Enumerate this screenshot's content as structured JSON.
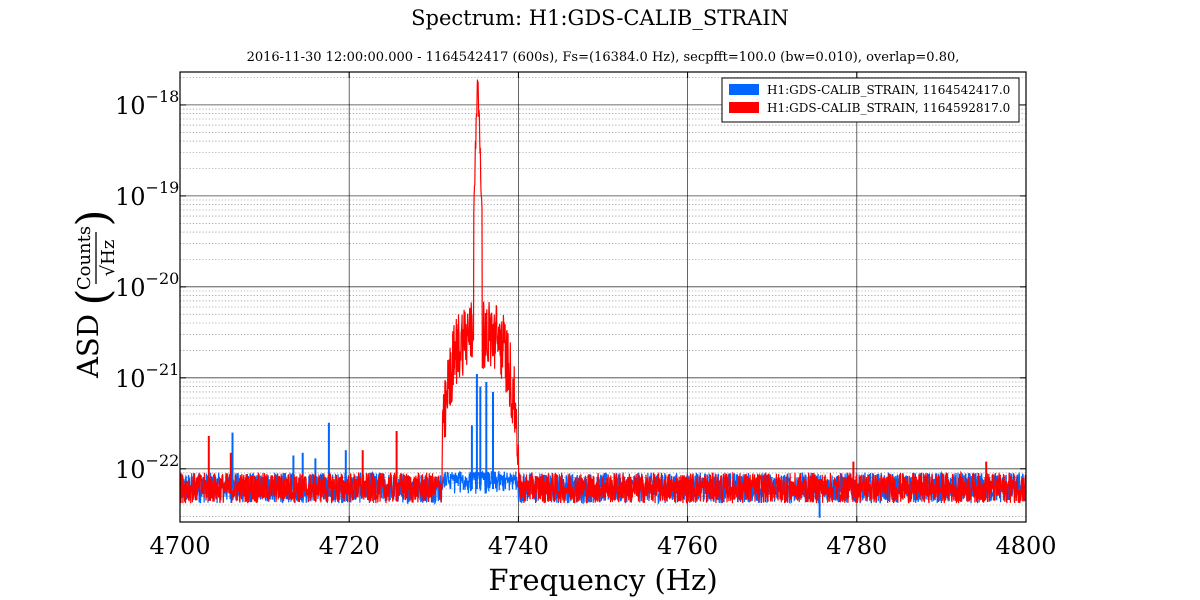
{
  "chart_data": {
    "type": "line",
    "title": "Spectrum: H1:GDS-CALIB_STRAIN",
    "subtitle": "2016-11-30 12:00:00.000 - 1164542417 (600s), Fs=(16384.0 Hz), secpfft=100.0 (bw=0.010), overlap=0.80,",
    "xlabel": "Frequency (Hz)",
    "ylabel": {
      "prefix": "ASD",
      "numerator": "Counts",
      "denominator": "√Hz"
    },
    "xlim": [
      4700,
      4800
    ],
    "ylim": [
      2.6e-23,
      2.3e-18
    ],
    "yscale": "log",
    "grid": true,
    "legend_position": "top-right",
    "x_ticks": [
      4700,
      4720,
      4740,
      4760,
      4780,
      4800
    ],
    "y_ticks": [
      {
        "value": 1e-22,
        "label_base": "10",
        "label_exp": "−22"
      },
      {
        "value": 1e-21,
        "label_base": "10",
        "label_exp": "−21"
      },
      {
        "value": 1e-20,
        "label_base": "10",
        "label_exp": "−20"
      },
      {
        "value": 1e-19,
        "label_base": "10",
        "label_exp": "−19"
      },
      {
        "value": 1e-18,
        "label_base": "10",
        "label_exp": "−18"
      }
    ],
    "series": [
      {
        "name": "H1:GDS-CALIB_STRAIN, 1164542417.0",
        "color": "#0066ff",
        "noise_floor": 6e-23,
        "noise_range": [
          4e-23,
          9.5e-23
        ],
        "features": [
          {
            "x": 4706.2,
            "y": 2.5e-22,
            "type": "line"
          },
          {
            "x": 4713.4,
            "y": 1.4e-22,
            "type": "line"
          },
          {
            "x": 4714.5,
            "y": 1.5e-22,
            "type": "line"
          },
          {
            "x": 4716.0,
            "y": 1.3e-22,
            "type": "line"
          },
          {
            "x": 4717.6,
            "y": 3.2e-22,
            "type": "line"
          },
          {
            "x": 4719.6,
            "y": 1.6e-22,
            "type": "line"
          },
          {
            "x": 4734.5,
            "y": 3e-22,
            "type": "line"
          },
          {
            "x": 4735.1,
            "y": 1.1e-21,
            "type": "line"
          },
          {
            "x": 4735.5,
            "y": 8e-22,
            "type": "line"
          },
          {
            "x": 4736.2,
            "y": 9e-22,
            "type": "line"
          },
          {
            "x": 4737.0,
            "y": 7e-22,
            "type": "line"
          },
          {
            "x": 4775.6,
            "y": 2.9e-23,
            "type": "dip"
          }
        ]
      },
      {
        "name": "H1:GDS-CALIB_STRAIN, 1164592817.0",
        "color": "#ff0000",
        "noise_floor": 6e-23,
        "noise_range": [
          4e-23,
          9.5e-23
        ],
        "bump": {
          "x_start": 4731,
          "x_end": 4740,
          "peak": 2.3e-18,
          "peak_x": 4735.2,
          "shoulder": 3e-21
        },
        "features": [
          {
            "x": 4703.4,
            "y": 2.3e-22,
            "type": "line"
          },
          {
            "x": 4706.0,
            "y": 1.5e-22,
            "type": "line"
          },
          {
            "x": 4721.6,
            "y": 1.6e-22,
            "type": "line"
          },
          {
            "x": 4725.6,
            "y": 2.6e-22,
            "type": "line"
          },
          {
            "x": 4779.6,
            "y": 1.2e-22,
            "type": "line"
          },
          {
            "x": 4795.3,
            "y": 1.2e-22,
            "type": "line"
          }
        ]
      }
    ]
  }
}
